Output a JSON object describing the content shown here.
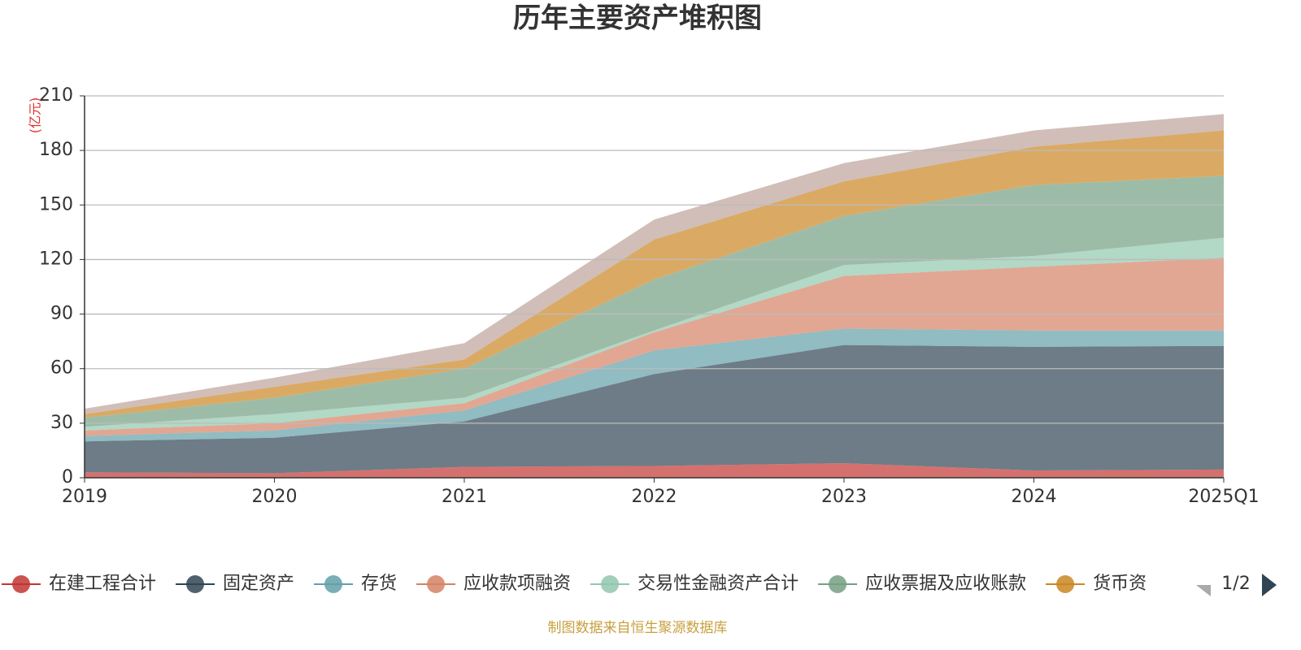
{
  "chart_data": {
    "type": "stacked_area",
    "title": "历年主要资产堆积图",
    "y_unit_label": "(亿元)",
    "source": "制图数据来自恒生聚源数据库",
    "legend_page": "1/2",
    "categories": [
      "2019",
      "2020",
      "2021",
      "2022",
      "2023",
      "2024",
      "2025Q1"
    ],
    "ylim": [
      0,
      210
    ],
    "yticks": [
      0,
      30,
      60,
      90,
      120,
      150,
      180,
      210
    ],
    "grid": true,
    "series": [
      {
        "name": "在建工程合计",
        "color": "#c23531",
        "values": [
          3,
          2.5,
          6,
          6.5,
          8,
          4,
          4.5
        ]
      },
      {
        "name": "固定资产",
        "color": "#2f4554",
        "values": [
          17,
          19.5,
          25,
          50.5,
          65,
          68,
          68
        ]
      },
      {
        "name": "存货",
        "color": "#61a0a8",
        "values": [
          3,
          4,
          6,
          13,
          9,
          9,
          8.5
        ]
      },
      {
        "name": "应收款项融资",
        "color": "#d48265",
        "values": [
          3,
          4,
          4,
          10,
          29,
          35,
          40
        ]
      },
      {
        "name": "交易性金融资产合计",
        "color": "#91c7ae",
        "values": [
          2,
          5,
          3,
          1,
          6,
          6,
          11
        ]
      },
      {
        "name": "应收票据及应收账款",
        "color": "#749f83",
        "values": [
          5,
          9,
          16,
          28,
          27,
          39,
          34
        ]
      },
      {
        "name": "货币资",
        "color": "#ca8622",
        "values": [
          2,
          6,
          5,
          22,
          19,
          21,
          25
        ]
      },
      {
        "color": "#bda29a",
        "values": [
          3,
          5,
          9,
          11,
          10,
          9,
          9
        ]
      }
    ]
  }
}
